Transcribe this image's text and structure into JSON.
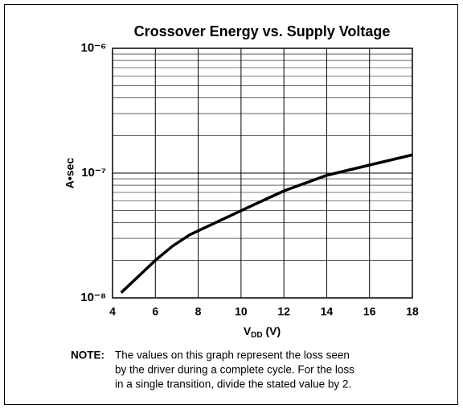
{
  "chart_data": {
    "type": "line",
    "title": "Crossover Energy vs. Supply Voltage",
    "ylabel": "A•sec",
    "xlabel": [
      "V",
      "DD",
      " (V)"
    ],
    "log_y": true,
    "grid": true,
    "xlim": [
      4,
      18
    ],
    "xticks": [
      4,
      6,
      8,
      10,
      12,
      14,
      16,
      18
    ],
    "ylim": [
      1e-08,
      1e-06
    ],
    "yticks": [
      {
        "value": 1e-08,
        "label": "10⁻⁸"
      },
      {
        "value": 1e-07,
        "label": "10⁻⁷"
      },
      {
        "value": 1e-06,
        "label": "10⁻⁶"
      }
    ],
    "series": [
      {
        "name": "Crossover Energy",
        "color": "#000000",
        "x": [
          4.4,
          6,
          6.8,
          7.6,
          10,
          12,
          14,
          16,
          18
        ],
        "values": [
          1.1e-08,
          2e-08,
          2.6e-08,
          3.2e-08,
          5e-08,
          7.2e-08,
          9.6e-08,
          1.16e-07,
          1.4e-07
        ]
      }
    ],
    "note": {
      "label": "NOTE:",
      "lines": [
        "The values on this graph represent the loss seen",
        "by the driver during a complete cycle. For the loss",
        "in a single transition, divide the stated value by 2."
      ]
    }
  }
}
